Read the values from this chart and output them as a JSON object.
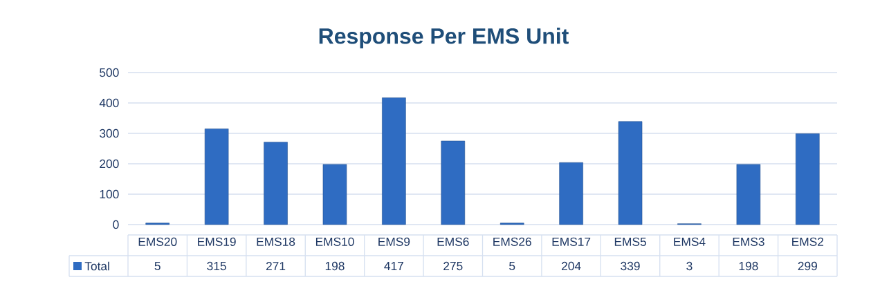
{
  "chart_data": {
    "type": "bar",
    "title": "Response Per EMS Unit",
    "categories": [
      "EMS20",
      "EMS19",
      "EMS18",
      "EMS10",
      "EMS9",
      "EMS6",
      "EMS26",
      "EMS17",
      "EMS5",
      "EMS4",
      "EMS3",
      "EMS2"
    ],
    "series": [
      {
        "name": "Total",
        "color": "#2f6cc2",
        "values": [
          5,
          315,
          271,
          198,
          417,
          275,
          5,
          204,
          339,
          3,
          198,
          299
        ]
      }
    ],
    "ylim": [
      0,
      500
    ],
    "yticks": [
      0,
      100,
      200,
      300,
      400,
      500
    ],
    "grid": "y",
    "legend": "bottom",
    "data_labels": true
  }
}
